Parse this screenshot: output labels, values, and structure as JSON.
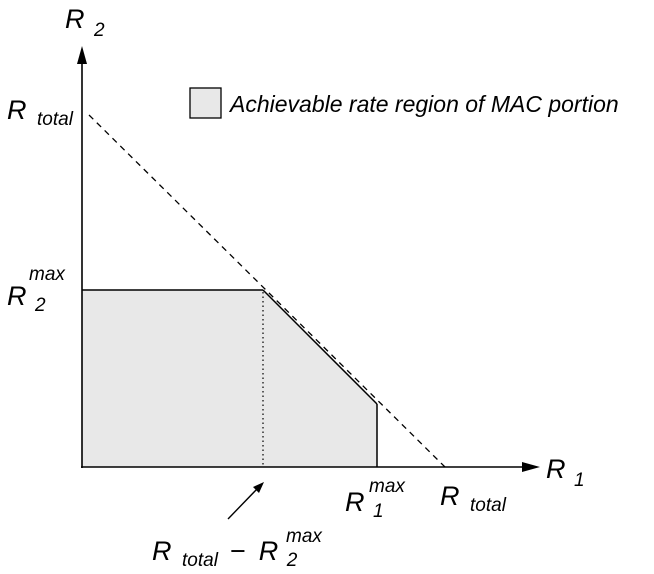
{
  "colors": {
    "region_fill": "#e8e8e8",
    "stroke": "#000000",
    "background": "#ffffff"
  },
  "legend": {
    "text": "Achievable rate region of MAC portion"
  },
  "axes": {
    "x": {
      "main": "R",
      "sub": "1"
    },
    "y": {
      "main": "R",
      "sub": "2"
    }
  },
  "labels": {
    "y_total": {
      "main": "R",
      "sub": "total"
    },
    "x_total": {
      "main": "R",
      "sub": "total"
    },
    "r2_max": {
      "main": "R",
      "sub": "2",
      "sup": "max"
    },
    "r1_max": {
      "main": "R",
      "sub": "1",
      "sup": "max"
    },
    "difference": {
      "left_main": "R",
      "left_sub": "total",
      "operator": "−",
      "right_main": "R",
      "right_sub": "2",
      "right_sup": "max"
    }
  },
  "region": {
    "description_values": {
      "R_total": 1.0,
      "R2_max": 0.5,
      "R1_max": 0.82
    }
  }
}
